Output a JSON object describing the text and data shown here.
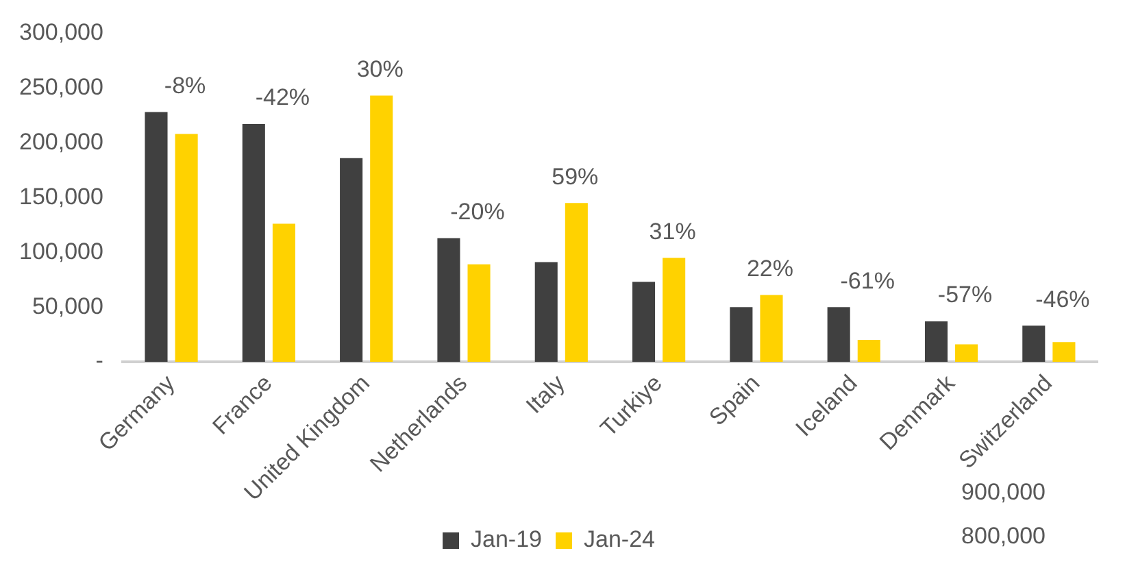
{
  "chart_data": {
    "type": "bar",
    "categories": [
      "Germany",
      "France",
      "United Kingdom",
      "Netherlands",
      "Italy",
      "Turkiye",
      "Spain",
      "Iceland",
      "Denmark",
      "Switzerland"
    ],
    "series": [
      {
        "name": "Jan-19",
        "color": "#404040",
        "values": [
          228000,
          217000,
          186000,
          113000,
          91000,
          73000,
          50000,
          50000,
          37000,
          33000
        ]
      },
      {
        "name": "Jan-24",
        "color": "#ffd200",
        "values": [
          208000,
          126000,
          243000,
          89000,
          145000,
          95000,
          61000,
          20000,
          16000,
          18000
        ]
      }
    ],
    "ylim": [
      0,
      300000
    ],
    "yticks": [
      {
        "value": 0,
        "label": "-"
      },
      {
        "value": 50000,
        "label": "50,000"
      },
      {
        "value": 100000,
        "label": "100,000"
      },
      {
        "value": 150000,
        "label": "150,000"
      },
      {
        "value": 200000,
        "label": "200,000"
      },
      {
        "value": 250000,
        "label": "250,000"
      },
      {
        "value": 300000,
        "label": "300,000"
      }
    ],
    "annotations": [
      {
        "text": "-8%",
        "x": "Germany",
        "y": 228000
      },
      {
        "text": "-42%",
        "x": "France",
        "y": 217000
      },
      {
        "text": "30%",
        "x": "United Kingdom",
        "y": 243000
      },
      {
        "text": "-20%",
        "x": "Netherlands",
        "y": 113000
      },
      {
        "text": "59%",
        "x": "Italy",
        "y": 145000
      },
      {
        "text": "31%",
        "x": "Turkiye",
        "y": 95000
      },
      {
        "text": "22%",
        "x": "Spain",
        "y": 61000
      },
      {
        "text": "-61%",
        "x": "Iceland",
        "y": 50000
      },
      {
        "text": "-57%",
        "x": "Denmark",
        "y": 37000
      },
      {
        "text": "-46%",
        "x": "Switzerland",
        "y": 33000
      },
      "900,000",
      "800,000"
    ],
    "grid": false,
    "legend": "bottom"
  }
}
